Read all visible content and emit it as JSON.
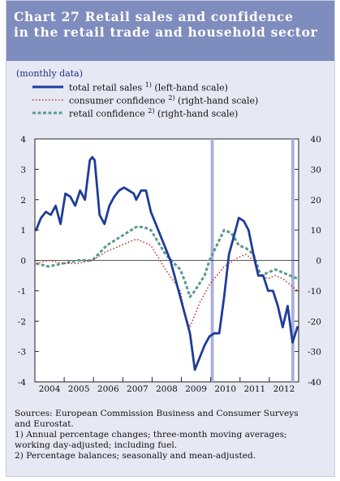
{
  "header": {
    "title_line1": "Chart 27 Retail sales and confidence",
    "title_line2": "in the retail trade and household sector"
  },
  "subtitle": "(monthly data)",
  "legend": [
    {
      "label": "total retail sales ",
      "sup": "1)",
      "tail": " (left-hand scale)",
      "color": "#1f3c99",
      "style": "solid"
    },
    {
      "label": "consumer confidence ",
      "sup": "2)",
      "tail": " (right-hand scale)",
      "color": "#c0392b",
      "style": "dotted"
    },
    {
      "label": "retail confidence ",
      "sup": "2)",
      "tail": " (right-hand scale)",
      "color": "#5a9a8e",
      "style": "dashed"
    }
  ],
  "notes": [
    "Sources: European Commission Business and Consumer Surveys",
    "and Eurostat.",
    "1) Annual percentage changes; three-month moving averages;",
    "working day-adjusted; including fuel.",
    "2) Percentage balances; seasonally and mean-adjusted."
  ],
  "colors": {
    "header": "#7f8cbe",
    "panel": "#e6e8f3",
    "highlight": "#a9b1dc"
  },
  "chart_data": {
    "type": "line",
    "x_range": [
      "2004-01",
      "2012-12"
    ],
    "x_tick_labels": [
      "2004",
      "2005",
      "2006",
      "2007",
      "2008",
      "2009",
      "2010",
      "2011",
      "2012"
    ],
    "y_left": {
      "range": [
        -4,
        4
      ],
      "ticks": [
        -4,
        -3,
        -2,
        -1,
        0,
        1,
        2,
        3,
        4
      ]
    },
    "y_right": {
      "range": [
        -40,
        40
      ],
      "ticks": [
        -40,
        -30,
        -20,
        -10,
        0,
        10,
        20,
        30,
        40
      ]
    },
    "highlighted_months": [
      "2010-01",
      "2012-10"
    ],
    "series": [
      {
        "name": "total retail sales (left-hand scale)",
        "axis": "left",
        "points": [
          [
            "2004-01",
            1.0
          ],
          [
            "2004-03",
            1.4
          ],
          [
            "2004-05",
            1.6
          ],
          [
            "2004-07",
            1.5
          ],
          [
            "2004-09",
            1.8
          ],
          [
            "2004-11",
            1.2
          ],
          [
            "2005-01",
            2.2
          ],
          [
            "2005-03",
            2.1
          ],
          [
            "2005-05",
            1.8
          ],
          [
            "2005-07",
            2.3
          ],
          [
            "2005-09",
            2.0
          ],
          [
            "2005-11",
            3.3
          ],
          [
            "2005-12",
            3.4
          ],
          [
            "2006-01",
            3.3
          ],
          [
            "2006-03",
            1.5
          ],
          [
            "2006-05",
            1.2
          ],
          [
            "2006-07",
            1.8
          ],
          [
            "2006-09",
            2.1
          ],
          [
            "2006-11",
            2.3
          ],
          [
            "2007-01",
            2.4
          ],
          [
            "2007-03",
            2.3
          ],
          [
            "2007-05",
            2.2
          ],
          [
            "2007-06",
            2.0
          ],
          [
            "2007-08",
            2.3
          ],
          [
            "2007-10",
            2.3
          ],
          [
            "2007-12",
            1.6
          ],
          [
            "2008-02",
            1.2
          ],
          [
            "2008-04",
            0.8
          ],
          [
            "2008-06",
            0.4
          ],
          [
            "2008-08",
            0.0
          ],
          [
            "2008-10",
            -0.6
          ],
          [
            "2008-12",
            -1.2
          ],
          [
            "2009-02",
            -1.8
          ],
          [
            "2009-04",
            -2.4
          ],
          [
            "2009-06",
            -3.6
          ],
          [
            "2009-08",
            -3.2
          ],
          [
            "2009-10",
            -2.8
          ],
          [
            "2009-12",
            -2.5
          ],
          [
            "2010-02",
            -2.4
          ],
          [
            "2010-04",
            -2.4
          ],
          [
            "2010-06",
            -1.2
          ],
          [
            "2010-08",
            0.2
          ],
          [
            "2010-10",
            0.8
          ],
          [
            "2010-12",
            1.4
          ],
          [
            "2011-02",
            1.3
          ],
          [
            "2011-04",
            1.0
          ],
          [
            "2011-06",
            0.2
          ],
          [
            "2011-08",
            -0.5
          ],
          [
            "2011-10",
            -0.5
          ],
          [
            "2011-12",
            -1.0
          ],
          [
            "2012-02",
            -1.0
          ],
          [
            "2012-04",
            -1.5
          ],
          [
            "2012-06",
            -2.2
          ],
          [
            "2012-08",
            -1.5
          ],
          [
            "2012-10",
            -2.7
          ],
          [
            "2012-12",
            -2.2
          ]
        ]
      },
      {
        "name": "consumer confidence (right-hand scale)",
        "axis": "right",
        "points": [
          [
            "2004-01",
            -1
          ],
          [
            "2004-06",
            0
          ],
          [
            "2004-12",
            -1
          ],
          [
            "2005-06",
            -1
          ],
          [
            "2005-12",
            0
          ],
          [
            "2006-06",
            3
          ],
          [
            "2006-12",
            5
          ],
          [
            "2007-06",
            7
          ],
          [
            "2007-12",
            5
          ],
          [
            "2008-06",
            -3
          ],
          [
            "2008-12",
            -10
          ],
          [
            "2009-02",
            -18
          ],
          [
            "2009-04",
            -22
          ],
          [
            "2009-08",
            -14
          ],
          [
            "2009-12",
            -8
          ],
          [
            "2010-06",
            -2
          ],
          [
            "2010-12",
            1
          ],
          [
            "2011-03",
            2
          ],
          [
            "2011-06",
            0
          ],
          [
            "2011-09",
            -5
          ],
          [
            "2011-12",
            -6
          ],
          [
            "2012-03",
            -5
          ],
          [
            "2012-06",
            -6
          ],
          [
            "2012-09",
            -8
          ],
          [
            "2012-12",
            -10
          ]
        ]
      },
      {
        "name": "retail confidence (right-hand scale)",
        "axis": "right",
        "points": [
          [
            "2004-01",
            -1
          ],
          [
            "2004-06",
            -2
          ],
          [
            "2004-12",
            -1
          ],
          [
            "2005-06",
            0
          ],
          [
            "2005-12",
            0
          ],
          [
            "2006-06",
            5
          ],
          [
            "2006-12",
            8
          ],
          [
            "2007-06",
            11
          ],
          [
            "2007-09",
            11
          ],
          [
            "2007-12",
            10
          ],
          [
            "2008-06",
            2
          ],
          [
            "2008-12",
            -3
          ],
          [
            "2009-02",
            -7
          ],
          [
            "2009-04",
            -12
          ],
          [
            "2009-06",
            -10
          ],
          [
            "2009-10",
            -5
          ],
          [
            "2009-12",
            0
          ],
          [
            "2010-03",
            5
          ],
          [
            "2010-06",
            10
          ],
          [
            "2010-09",
            9
          ],
          [
            "2010-12",
            5
          ],
          [
            "2011-03",
            4
          ],
          [
            "2011-06",
            2
          ],
          [
            "2011-09",
            -5
          ],
          [
            "2011-12",
            -4
          ],
          [
            "2012-03",
            -3
          ],
          [
            "2012-06",
            -4
          ],
          [
            "2012-09",
            -5
          ],
          [
            "2012-12",
            -6
          ]
        ]
      }
    ]
  }
}
